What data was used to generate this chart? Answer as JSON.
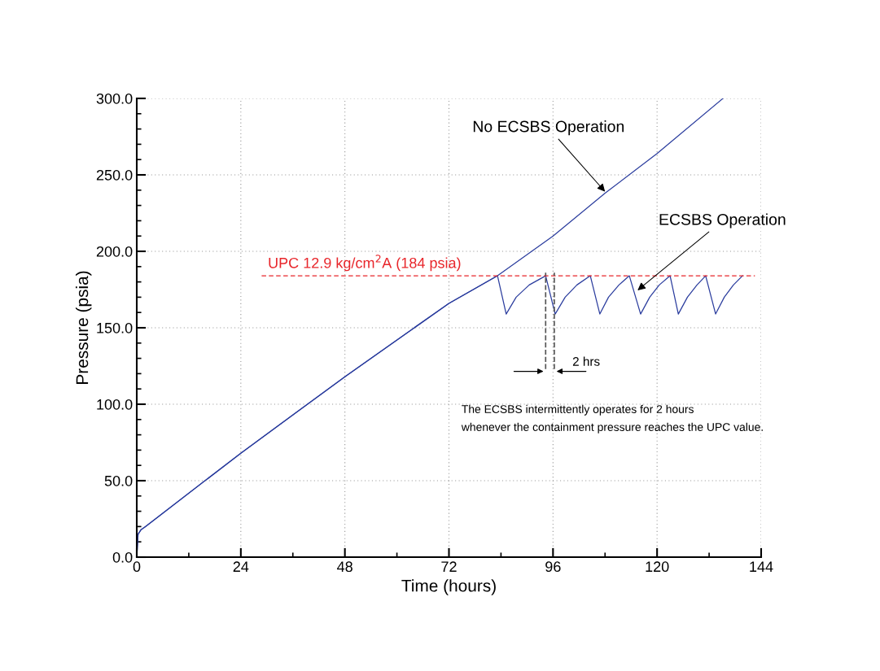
{
  "chart_data": {
    "type": "line",
    "xlabel": "Time (hours)",
    "ylabel": "Pressure (psia)",
    "xlim": [
      0,
      144
    ],
    "ylim": [
      0,
      300
    ],
    "xticks": [
      0,
      {
        "value": 12,
        "label": null
      },
      24,
      {
        "value": 36,
        "label": null
      },
      48,
      {
        "value": 60,
        "label": null
      },
      72,
      {
        "value": 84,
        "label": null
      },
      96,
      {
        "value": 108,
        "label": null
      },
      120,
      {
        "value": 132,
        "label": null
      },
      144
    ],
    "yticks": [
      {
        "value": 0,
        "label": "0.0"
      },
      {
        "value": 10,
        "label": null
      },
      {
        "value": 20,
        "label": null
      },
      {
        "value": 30,
        "label": null
      },
      {
        "value": 40,
        "label": null
      },
      {
        "value": 50,
        "label": "50.0"
      },
      {
        "value": 60,
        "label": null
      },
      {
        "value": 70,
        "label": null
      },
      {
        "value": 80,
        "label": null
      },
      {
        "value": 90,
        "label": null
      },
      {
        "value": 100,
        "label": "100.0"
      },
      {
        "value": 110,
        "label": null
      },
      {
        "value": 120,
        "label": null
      },
      {
        "value": 130,
        "label": null
      },
      {
        "value": 140,
        "label": null
      },
      {
        "value": 150,
        "label": "150.0"
      },
      {
        "value": 160,
        "label": null
      },
      {
        "value": 170,
        "label": null
      },
      {
        "value": 180,
        "label": null
      },
      {
        "value": 190,
        "label": null
      },
      {
        "value": 200,
        "label": "200.0"
      },
      {
        "value": 210,
        "label": null
      },
      {
        "value": 220,
        "label": null
      },
      {
        "value": 230,
        "label": null
      },
      {
        "value": 240,
        "label": null
      },
      {
        "value": 250,
        "label": "250.0"
      },
      {
        "value": 260,
        "label": null
      },
      {
        "value": 270,
        "label": null
      },
      {
        "value": 280,
        "label": null
      },
      {
        "value": 290,
        "label": null
      },
      {
        "value": 300,
        "label": "300.0"
      }
    ],
    "grid": true,
    "marker": "none",
    "line_style": "solid",
    "series": [
      {
        "color": "#2b3d9e",
        "x": [
          0,
          0.3,
          1,
          2,
          24,
          48,
          72,
          83.2,
          96,
          108,
          120,
          135.2
        ],
        "values": [
          0,
          15,
          18,
          20,
          68,
          118,
          166,
          184,
          210,
          238,
          264,
          300
        ]
      },
      {
        "color": "#2b3d9e",
        "x": [
          0,
          0.3,
          1,
          2,
          24,
          48,
          72,
          83.2,
          85.2,
          87.5,
          90.5,
          94.3,
          96.5,
          98.8,
          101.5,
          104.6,
          106.8,
          108.8,
          111.2,
          113.6,
          116.2,
          118.3,
          120.5,
          123.0,
          124.9,
          127.0,
          129.2,
          131.2,
          133.5,
          135.5,
          137.6,
          139.7
        ],
        "values": [
          0,
          15,
          18,
          20,
          68,
          118,
          166,
          184,
          159,
          170,
          178,
          184,
          159,
          170,
          178,
          184,
          159,
          170,
          178,
          184,
          159,
          170,
          178,
          184,
          159,
          170,
          178,
          184,
          159,
          170,
          178,
          184
        ]
      }
    ],
    "ref_lines": [
      {
        "axis": "y",
        "value": 184,
        "label": "UPC 12.9 kg/cm$^{2}$A (184 psia)",
        "color": "#e8262b",
        "line_style": "dashed"
      },
      {
        "axis": "x",
        "value": 94.3,
        "color": "#555555",
        "line_style": "dashed"
      },
      {
        "axis": "x",
        "value": 96.3,
        "color": "#555555",
        "line_style": "dashed"
      }
    ],
    "annotations": [
      {
        "text": "2 hrs",
        "x": 96.3,
        "y": 122
      },
      {
        "text": "No ECSBS Operation",
        "x": 108,
        "y": 239
      },
      {
        "text": "ECSBS Operation",
        "x": 115.5,
        "y": 174.5
      },
      "The ECSBS intermittently operates for 2 hours\nwhenever the containment pressure reaches the UPC value."
    ]
  }
}
